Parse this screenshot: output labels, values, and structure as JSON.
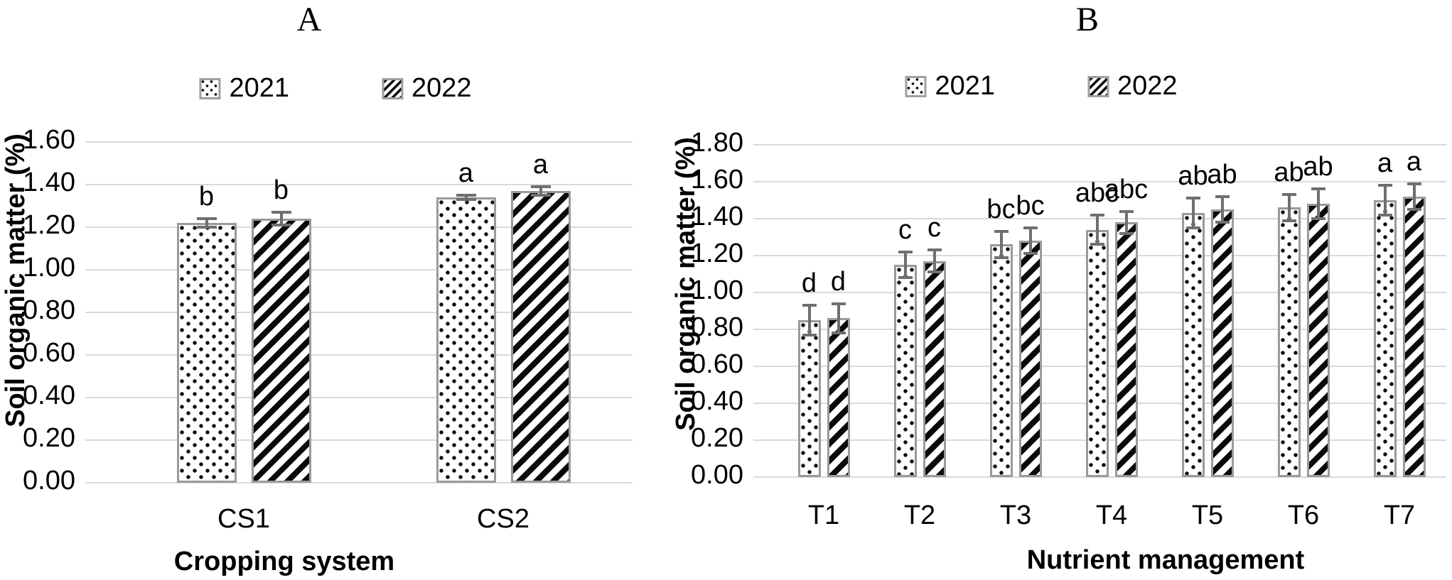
{
  "colors": {
    "bar_outline": "#9a9a9a",
    "gridline": "#d9d9d9",
    "error_bar": "#6f6f6f",
    "pattern_ink": "#0a0a0a",
    "text": "#000000"
  },
  "chart_data": [
    {
      "type": "bar",
      "panel_label": "A",
      "title": "A",
      "ylabel": "Soil organic matter (%)",
      "xlabel": "Cropping system",
      "ylim": [
        0.0,
        1.6
      ],
      "ytick_step": 0.2,
      "ytick_labels": [
        "0.00",
        "0.20",
        "0.40",
        "0.60",
        "0.80",
        "1.00",
        "1.20",
        "1.40",
        "1.60"
      ],
      "grid": true,
      "legend_position": "top",
      "categories": [
        "CS1",
        "CS2"
      ],
      "series": [
        {
          "name": "2021",
          "pattern": "dots",
          "values": [
            1.22,
            1.34
          ],
          "errors": [
            0.02,
            0.01
          ],
          "sig_letters": [
            "b",
            "a"
          ]
        },
        {
          "name": "2022",
          "pattern": "stripes",
          "values": [
            1.24,
            1.37
          ],
          "errors": [
            0.03,
            0.02
          ],
          "sig_letters": [
            "b",
            "a"
          ]
        }
      ]
    },
    {
      "type": "bar",
      "panel_label": "B",
      "title": "B",
      "ylabel": "Soil organic matter (%)",
      "xlabel": "Nutrient management",
      "ylim": [
        0.0,
        1.8
      ],
      "ytick_step": 0.2,
      "ytick_labels": [
        "0.00",
        "0.20",
        "0.40",
        "0.60",
        "0.80",
        "1.00",
        "1.20",
        "1.40",
        "1.60",
        "1.80"
      ],
      "grid": true,
      "legend_position": "top",
      "categories": [
        "T1",
        "T2",
        "T3",
        "T4",
        "T5",
        "T6",
        "T7"
      ],
      "series": [
        {
          "name": "2021",
          "pattern": "dots",
          "values": [
            0.85,
            1.15,
            1.26,
            1.34,
            1.43,
            1.46,
            1.5
          ],
          "errors": [
            0.08,
            0.07,
            0.07,
            0.08,
            0.08,
            0.07,
            0.08
          ],
          "sig_letters": [
            "d",
            "c",
            "bc",
            "abc",
            "ab",
            "ab",
            "a"
          ]
        },
        {
          "name": "2022",
          "pattern": "stripes",
          "values": [
            0.86,
            1.17,
            1.28,
            1.38,
            1.45,
            1.48,
            1.52
          ],
          "errors": [
            0.08,
            0.06,
            0.07,
            0.06,
            0.07,
            0.08,
            0.07
          ],
          "sig_letters": [
            "d",
            "c",
            "bc",
            "abc",
            "ab",
            "ab",
            "a"
          ]
        }
      ]
    }
  ]
}
